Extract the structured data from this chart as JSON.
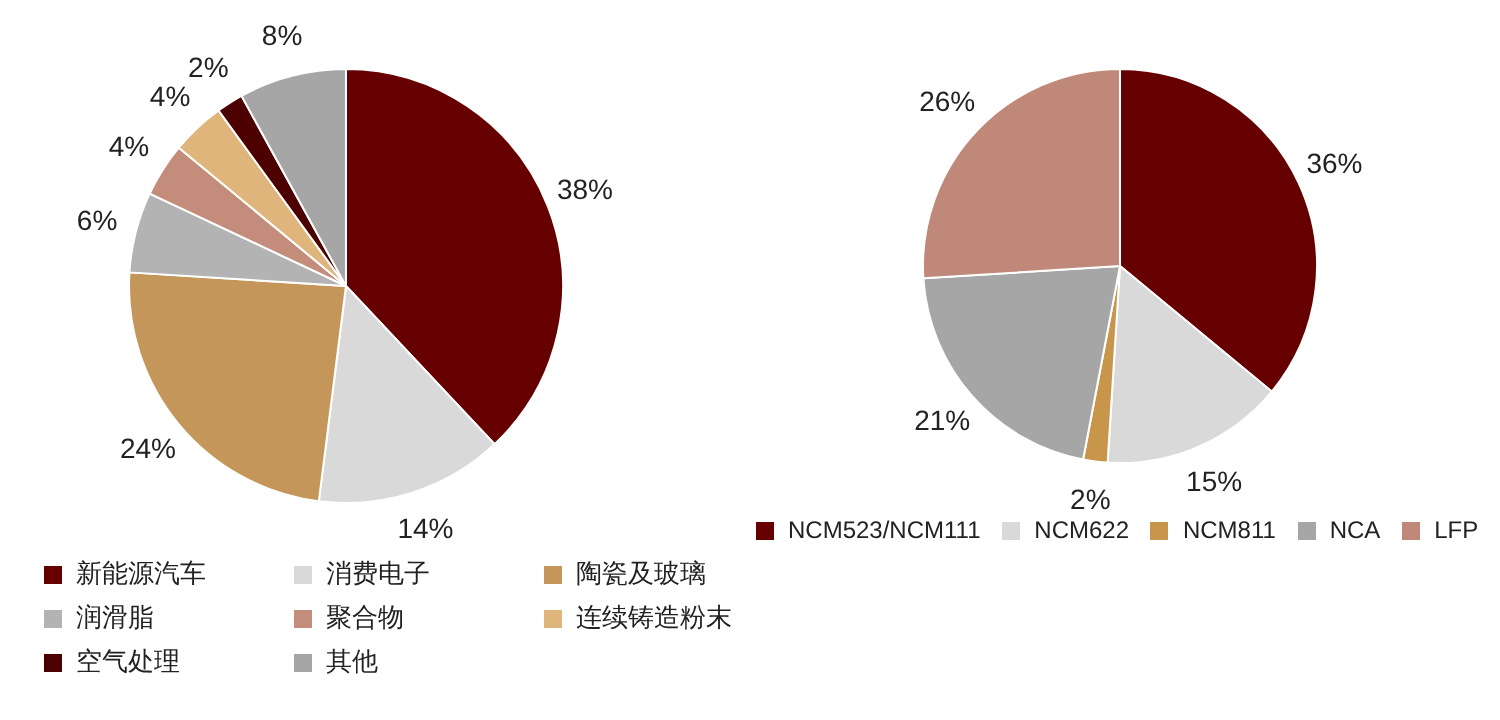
{
  "chart_data": [
    {
      "type": "pie",
      "categories": [
        "新能源汽车",
        "消费电子",
        "陶瓷及玻璃",
        "润滑脂",
        "聚合物",
        "连续铸造粉末",
        "空气处理",
        "其他"
      ],
      "values": [
        38,
        14,
        24,
        6,
        4,
        4,
        2,
        8
      ],
      "colors": [
        "#660000",
        "#d9d9d9",
        "#c4965a",
        "#b3b3b3",
        "#c48c7a",
        "#dfb57c",
        "#4d0000",
        "#a6a6a6"
      ],
      "value_labels": [
        "38%",
        "14%",
        "24%",
        "6%",
        "4%",
        "4%",
        "2%",
        "8%"
      ],
      "legend": "bottom"
    },
    {
      "type": "pie",
      "categories": [
        "NCM523/NCM111",
        "NCM622",
        "NCM811",
        "NCA",
        "LFP"
      ],
      "values": [
        36,
        15,
        2,
        21,
        26
      ],
      "colors": [
        "#660000",
        "#d9d9d9",
        "#c8964a",
        "#a6a6a6",
        "#bf8878"
      ],
      "value_labels": [
        "36%",
        "15%",
        "2%",
        "21%",
        "26%"
      ],
      "legend": "bottom"
    }
  ]
}
